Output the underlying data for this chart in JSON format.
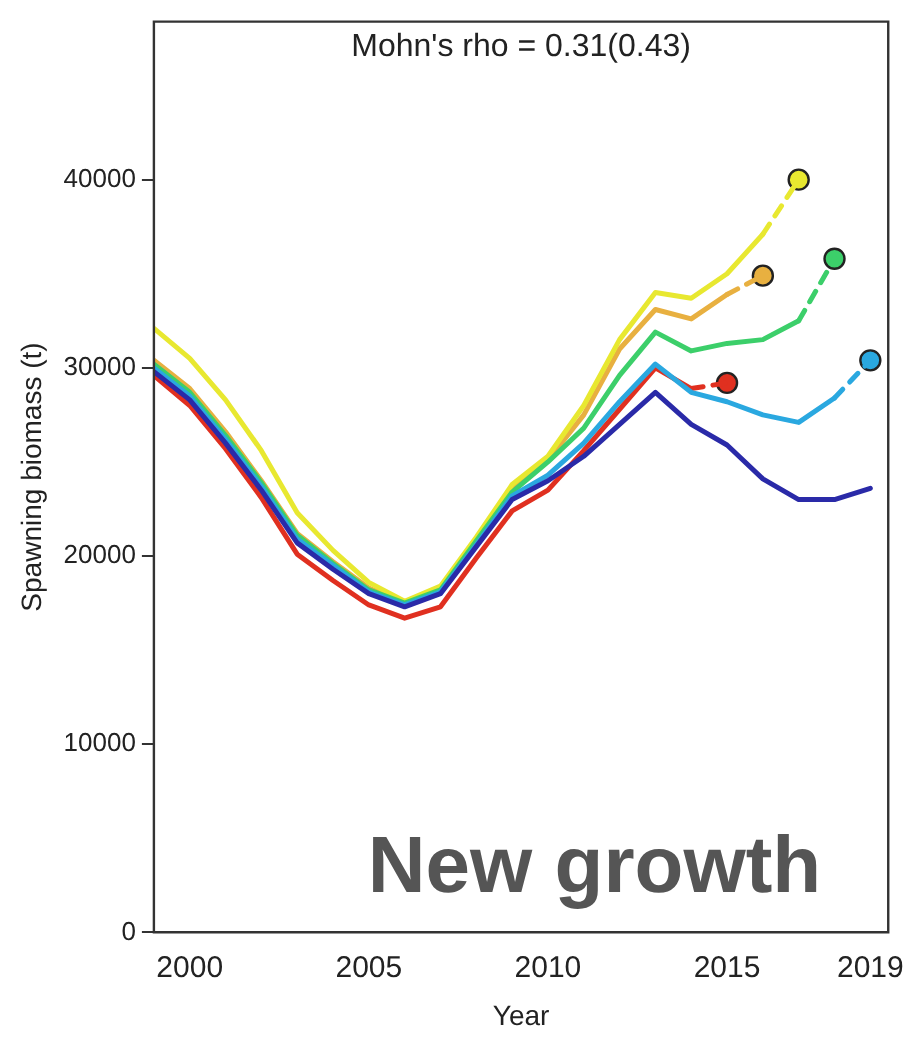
{
  "chart_data": {
    "type": "line",
    "title": "Mohn's rho = 0.31(0.43)",
    "xlabel": "Year",
    "ylabel": "Spawning biomass (t)",
    "xlim": [
      1999,
      2019.5
    ],
    "xticks": [
      2000,
      2005,
      2010,
      2015,
      2019
    ],
    "ylim": [
      0,
      48400
    ],
    "yticks": [
      0,
      10000,
      20000,
      30000,
      40000
    ],
    "grid": false,
    "legend": false,
    "marker": "none",
    "line_style": "solid",
    "annotations": [
      "New growth"
    ],
    "series": [
      {
        "color": "#2a2aa8",
        "x": [
          1999,
          2000,
          2001,
          2002,
          2003,
          2004,
          2005,
          2006,
          2007,
          2008,
          2009,
          2010,
          2011,
          2012,
          2013,
          2014,
          2015,
          2016,
          2017,
          2018,
          2019
        ],
        "values": [
          29800,
          28300,
          26000,
          23500,
          20700,
          19300,
          18000,
          17300,
          18000,
          20500,
          23000,
          24000,
          25300,
          27000,
          28700,
          27000,
          25900,
          24100,
          23000,
          23000,
          23600
        ]
      },
      {
        "color": "#2aa8e0",
        "x": [
          1999,
          2000,
          2001,
          2002,
          2003,
          2004,
          2005,
          2006,
          2007,
          2008,
          2009,
          2010,
          2011,
          2012,
          2013,
          2014,
          2015,
          2016,
          2017,
          2018
        ],
        "values": [
          30000,
          28500,
          26200,
          23700,
          20900,
          19500,
          18100,
          17400,
          18100,
          20600,
          23200,
          24300,
          26000,
          28200,
          30200,
          28700,
          28200,
          27500,
          27100,
          28400
        ]
      },
      {
        "type": "line",
        "line_style": "dashed",
        "color": "#2aa8e0",
        "x": [
          2018,
          2019
        ],
        "values": [
          28400,
          30400
        ]
      },
      {
        "color": "#3ccf6a",
        "x": [
          1999,
          2000,
          2001,
          2002,
          2003,
          2004,
          2005,
          2006,
          2007,
          2008,
          2009,
          2010,
          2011,
          2012,
          2013,
          2014,
          2015,
          2016,
          2017
        ],
        "values": [
          30200,
          28700,
          26400,
          23900,
          21100,
          19600,
          18200,
          17500,
          18200,
          20800,
          23400,
          25000,
          26800,
          29600,
          31900,
          30900,
          31300,
          31500,
          32500
        ]
      },
      {
        "type": "line",
        "line_style": "dashed",
        "color": "#3ccf6a",
        "x": [
          2017,
          2018
        ],
        "values": [
          32500,
          35800
        ]
      },
      {
        "color": "#e8e830",
        "x": [
          1999,
          2000,
          2001,
          2002,
          2003,
          2004,
          2005,
          2006,
          2007,
          2008,
          2009,
          2010,
          2011,
          2012,
          2013,
          2014,
          2015,
          2016
        ],
        "values": [
          32100,
          30500,
          28300,
          25600,
          22300,
          20300,
          18600,
          17600,
          18400,
          21000,
          23800,
          25300,
          28000,
          31500,
          34000,
          33700,
          35000,
          37100
        ]
      },
      {
        "type": "line",
        "line_style": "dashed",
        "color": "#e8e830",
        "x": [
          2016,
          2017
        ],
        "values": [
          37100,
          40000
        ]
      },
      {
        "color": "#e8b040",
        "x": [
          1999,
          2000,
          2001,
          2002,
          2003,
          2004,
          2005,
          2006,
          2007,
          2008,
          2009,
          2010,
          2011,
          2012,
          2013,
          2014,
          2015
        ],
        "values": [
          30400,
          28900,
          26600,
          24000,
          21200,
          19700,
          18300,
          17500,
          18200,
          20900,
          23600,
          25100,
          27500,
          31000,
          33100,
          32600,
          33900
        ]
      },
      {
        "type": "line",
        "line_style": "dashed",
        "color": "#e8b040",
        "x": [
          2015,
          2016
        ],
        "values": [
          33900,
          34900
        ]
      },
      {
        "color": "#e03020",
        "x": [
          1999,
          2000,
          2001,
          2002,
          2003,
          2004,
          2005,
          2006,
          2007,
          2008,
          2009,
          2010,
          2011,
          2012,
          2013,
          2014
        ],
        "values": [
          29600,
          28000,
          25700,
          23100,
          20100,
          18700,
          17400,
          16700,
          17300,
          19900,
          22400,
          23500,
          25600,
          27800,
          30000,
          28900
        ]
      },
      {
        "type": "line",
        "line_style": "dashed",
        "color": "#e03020",
        "x": [
          2014,
          2015
        ],
        "values": [
          28900,
          29200
        ]
      },
      {
        "type": "scatter",
        "marker": "circle",
        "x": [
          2015,
          2016,
          2017,
          2018,
          2019
        ],
        "values": [
          29200,
          34900,
          40000,
          35800,
          30400
        ],
        "colors": [
          "#e03020",
          "#e8b040",
          "#e8e830",
          "#3ccf6a",
          "#2aa8e0"
        ]
      }
    ]
  }
}
